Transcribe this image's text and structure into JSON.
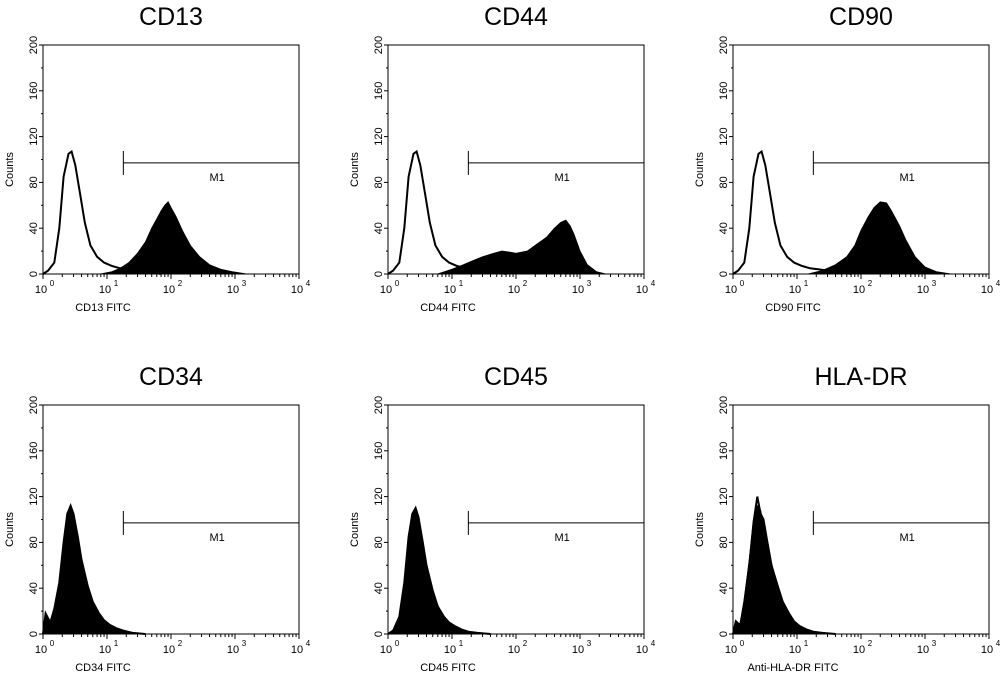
{
  "chart_data": [
    {
      "type": "area",
      "title": "CD13",
      "xlabel": "CD13 FITC",
      "ylabel": "Counts",
      "x_scale": "log",
      "xlim": [
        1,
        10000
      ],
      "ylim": [
        0,
        200
      ],
      "x_ticks": [
        {
          "base": "10",
          "exp": "0"
        },
        {
          "base": "10",
          "exp": "1"
        },
        {
          "base": "10",
          "exp": "2"
        },
        {
          "base": "10",
          "exp": "3"
        },
        {
          "base": "10",
          "exp": "4"
        }
      ],
      "y_ticks": [
        "0",
        "40",
        "80",
        "120",
        "160",
        "200"
      ],
      "marker": {
        "label": "M1",
        "start": 18,
        "end": 10000,
        "y": 97
      },
      "series": [
        {
          "style": "outline",
          "x": [
            1,
            1.2,
            1.5,
            1.8,
            2.1,
            2.5,
            2.8,
            3.2,
            3.8,
            4.5,
            5.5,
            7,
            9,
            12,
            16,
            22,
            30,
            45,
            70
          ],
          "y": [
            0,
            3,
            10,
            40,
            85,
            105,
            107,
            95,
            70,
            45,
            25,
            15,
            10,
            7,
            5,
            4,
            3,
            2,
            0
          ]
        },
        {
          "style": "filled",
          "x": [
            8,
            12,
            16,
            22,
            30,
            40,
            50,
            60,
            70,
            80,
            90,
            100,
            120,
            150,
            200,
            280,
            400,
            600,
            900,
            1500
          ],
          "y": [
            0,
            2,
            5,
            10,
            18,
            28,
            40,
            48,
            55,
            60,
            63,
            58,
            50,
            38,
            25,
            15,
            8,
            4,
            2,
            0
          ]
        }
      ]
    },
    {
      "type": "area",
      "title": "CD44",
      "xlabel": "CD44 FITC",
      "ylabel": "Counts",
      "x_scale": "log",
      "xlim": [
        1,
        10000
      ],
      "ylim": [
        0,
        200
      ],
      "x_ticks": [
        {
          "base": "10",
          "exp": "0"
        },
        {
          "base": "10",
          "exp": "1"
        },
        {
          "base": "10",
          "exp": "2"
        },
        {
          "base": "10",
          "exp": "3"
        },
        {
          "base": "10",
          "exp": "4"
        }
      ],
      "y_ticks": [
        "0",
        "40",
        "80",
        "120",
        "160",
        "200"
      ],
      "marker": {
        "label": "M1",
        "start": 18,
        "end": 10000,
        "y": 97
      },
      "series": [
        {
          "style": "outline",
          "x": [
            1,
            1.2,
            1.5,
            1.8,
            2.1,
            2.5,
            2.8,
            3.2,
            3.8,
            4.5,
            5.5,
            7,
            9,
            12,
            16,
            22,
            30,
            45,
            70
          ],
          "y": [
            0,
            3,
            10,
            40,
            85,
            105,
            107,
            95,
            70,
            45,
            25,
            15,
            10,
            7,
            5,
            4,
            3,
            2,
            0
          ]
        },
        {
          "style": "filled",
          "x": [
            6,
            10,
            15,
            22,
            30,
            45,
            60,
            80,
            100,
            150,
            200,
            300,
            400,
            500,
            600,
            700,
            800,
            1000,
            1300,
            1800,
            2500
          ],
          "y": [
            0,
            4,
            8,
            12,
            15,
            18,
            20,
            19,
            18,
            20,
            25,
            32,
            40,
            45,
            47,
            42,
            35,
            20,
            8,
            2,
            0
          ]
        }
      ]
    },
    {
      "type": "area",
      "title": "CD90",
      "xlabel": "CD90 FITC",
      "ylabel": "Counts",
      "x_scale": "log",
      "xlim": [
        1,
        10000
      ],
      "ylim": [
        0,
        200
      ],
      "x_ticks": [
        {
          "base": "10",
          "exp": "0"
        },
        {
          "base": "10",
          "exp": "1"
        },
        {
          "base": "10",
          "exp": "2"
        },
        {
          "base": "10",
          "exp": "3"
        },
        {
          "base": "10",
          "exp": "4"
        }
      ],
      "y_ticks": [
        "0",
        "40",
        "80",
        "120",
        "160",
        "200"
      ],
      "marker": {
        "label": "M1",
        "start": 18,
        "end": 10000,
        "y": 97
      },
      "series": [
        {
          "style": "outline",
          "x": [
            1,
            1.2,
            1.5,
            1.8,
            2.1,
            2.5,
            2.8,
            3.2,
            3.8,
            4.5,
            5.5,
            7,
            9,
            12,
            16,
            22,
            30,
            45,
            70
          ],
          "y": [
            0,
            3,
            10,
            40,
            85,
            105,
            107,
            95,
            70,
            45,
            25,
            15,
            10,
            7,
            5,
            4,
            3,
            2,
            0
          ]
        },
        {
          "style": "filled",
          "x": [
            15,
            25,
            40,
            60,
            80,
            100,
            130,
            160,
            200,
            250,
            300,
            400,
            500,
            700,
            1000,
            1500,
            2500
          ],
          "y": [
            0,
            3,
            8,
            15,
            25,
            38,
            50,
            58,
            63,
            62,
            55,
            42,
            30,
            15,
            6,
            2,
            0
          ]
        }
      ]
    },
    {
      "type": "area",
      "title": "CD34",
      "xlabel": "CD34 FITC",
      "ylabel": "Counts",
      "x_scale": "log",
      "xlim": [
        1,
        10000
      ],
      "ylim": [
        0,
        200
      ],
      "x_ticks": [
        {
          "base": "10",
          "exp": "0"
        },
        {
          "base": "10",
          "exp": "1"
        },
        {
          "base": "10",
          "exp": "2"
        },
        {
          "base": "10",
          "exp": "3"
        },
        {
          "base": "10",
          "exp": "4"
        }
      ],
      "y_ticks": [
        "0",
        "40",
        "80",
        "120",
        "160",
        "200"
      ],
      "marker": {
        "label": "M1",
        "start": 18,
        "end": 10000,
        "y": 97
      },
      "series": [
        {
          "style": "filled",
          "x": [
            1,
            1.1,
            1.3,
            1.5,
            1.8,
            2.1,
            2.4,
            2.7,
            3,
            3.5,
            4,
            5,
            6,
            7.5,
            9,
            11,
            14,
            18,
            25,
            40
          ],
          "y": [
            0,
            18,
            10,
            22,
            45,
            80,
            105,
            112,
            105,
            85,
            65,
            42,
            28,
            18,
            12,
            8,
            5,
            3,
            1,
            0
          ]
        },
        {
          "style": "outline",
          "x": [
            1,
            1.1,
            1.3,
            1.5,
            1.8,
            2.1,
            2.4,
            2.7,
            3,
            3.5,
            4,
            5,
            6,
            7.5,
            9,
            11,
            14,
            18,
            25,
            40
          ],
          "y": [
            0,
            18,
            10,
            22,
            45,
            80,
            105,
            112,
            105,
            85,
            65,
            42,
            28,
            18,
            12,
            8,
            5,
            3,
            1,
            0
          ]
        }
      ]
    },
    {
      "type": "area",
      "title": "CD45",
      "xlabel": "CD45 FITC",
      "ylabel": "Counts",
      "x_scale": "log",
      "xlim": [
        1,
        10000
      ],
      "ylim": [
        0,
        200
      ],
      "x_ticks": [
        {
          "base": "10",
          "exp": "0"
        },
        {
          "base": "10",
          "exp": "1"
        },
        {
          "base": "10",
          "exp": "2"
        },
        {
          "base": "10",
          "exp": "3"
        },
        {
          "base": "10",
          "exp": "4"
        }
      ],
      "y_ticks": [
        "0",
        "40",
        "80",
        "120",
        "160",
        "200"
      ],
      "marker": {
        "label": "M1",
        "start": 18,
        "end": 10000,
        "y": 97
      },
      "series": [
        {
          "style": "filled",
          "x": [
            1,
            1.2,
            1.5,
            1.8,
            2.1,
            2.4,
            2.7,
            3,
            3.5,
            4,
            5,
            6,
            7.5,
            9,
            11,
            14,
            18,
            25,
            40
          ],
          "y": [
            0,
            3,
            15,
            45,
            85,
            105,
            110,
            102,
            80,
            60,
            38,
            24,
            15,
            10,
            7,
            4,
            2,
            1,
            0
          ]
        },
        {
          "style": "outline",
          "x": [
            1,
            1.2,
            1.5,
            1.8,
            2.1,
            2.4,
            2.7,
            3,
            3.5,
            4,
            5,
            6,
            7.5,
            9,
            11,
            14,
            18,
            25,
            40
          ],
          "y": [
            0,
            3,
            15,
            45,
            85,
            105,
            110,
            102,
            80,
            60,
            38,
            24,
            15,
            10,
            7,
            4,
            2,
            1,
            0
          ]
        }
      ]
    },
    {
      "type": "area",
      "title": "HLA-DR",
      "xlabel": "Anti-HLA-DR FITC",
      "ylabel": "Counts",
      "x_scale": "log",
      "xlim": [
        1,
        10000
      ],
      "ylim": [
        0,
        200
      ],
      "x_ticks": [
        {
          "base": "10",
          "exp": "0"
        },
        {
          "base": "10",
          "exp": "1"
        },
        {
          "base": "10",
          "exp": "2"
        },
        {
          "base": "10",
          "exp": "3"
        },
        {
          "base": "10",
          "exp": "4"
        }
      ],
      "y_ticks": [
        "0",
        "40",
        "80",
        "120",
        "160",
        "200"
      ],
      "marker": {
        "label": "M1",
        "start": 18,
        "end": 10000,
        "y": 97
      },
      "series": [
        {
          "style": "filled",
          "x": [
            1,
            1.1,
            1.3,
            1.5,
            1.8,
            2.1,
            2.4,
            2.7,
            3,
            3.5,
            4,
            5,
            6,
            7.5,
            9,
            11,
            14,
            18,
            25,
            40
          ],
          "y": [
            0,
            12,
            8,
            30,
            65,
            100,
            112,
            108,
            95,
            80,
            62,
            40,
            26,
            16,
            10,
            6,
            4,
            2,
            1,
            0
          ]
        },
        {
          "style": "outline",
          "x": [
            1,
            1.1,
            1.3,
            1.5,
            1.8,
            2.1,
            2.4,
            2.7,
            3,
            3.5,
            4,
            5,
            6,
            7.5,
            9,
            11,
            14,
            18,
            25,
            40
          ],
          "y": [
            0,
            10,
            8,
            28,
            60,
            98,
            120,
            105,
            100,
            78,
            60,
            42,
            28,
            18,
            11,
            7,
            4,
            2,
            1,
            0
          ]
        }
      ]
    }
  ]
}
